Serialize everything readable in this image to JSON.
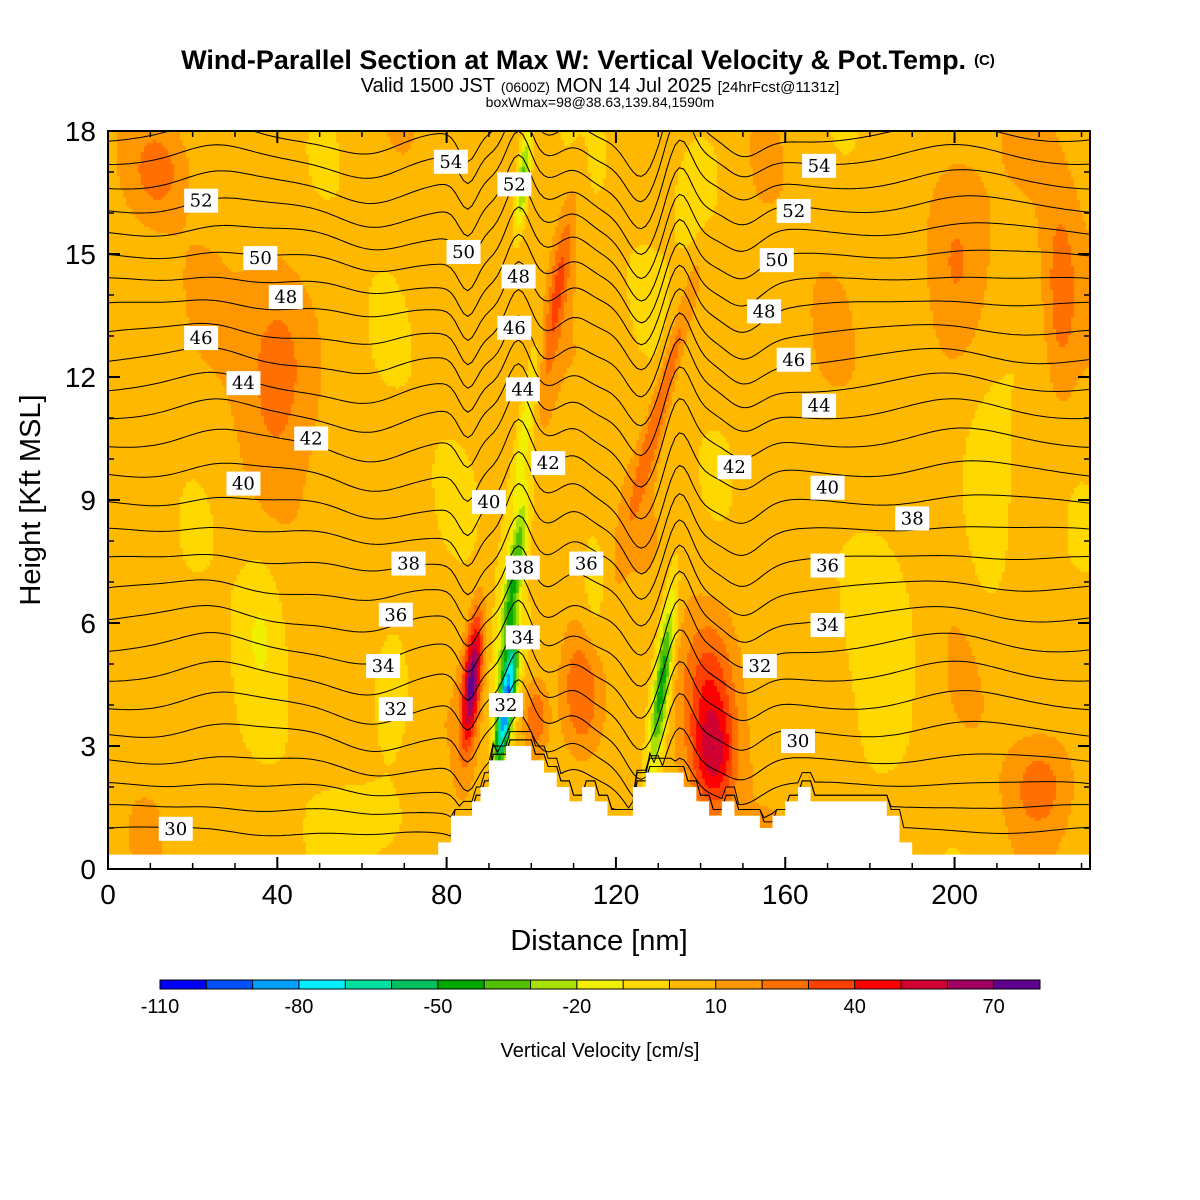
{
  "chart_data": {
    "type": "heatmap",
    "title": "Wind-Parallel Section at Max W: Vertical Velocity & Pot.Temp.",
    "title_mark": "(C)",
    "subtitle_a": "Valid 1500 JST",
    "subtitle_zulu": "(0600Z)",
    "subtitle_b": "MON 14 Jul 2025",
    "subtitle_fcst": "[24hrFcst@1131z]",
    "subtitle_box": "boxWmax=98@38.63,139.84,1590m",
    "xlabel": "Distance [nm]",
    "ylabel": "Height [Kft MSL]",
    "xlim": [
      0,
      232
    ],
    "ylim": [
      0,
      18
    ],
    "x_ticks": [
      0,
      40,
      80,
      120,
      160,
      200
    ],
    "x_tick_labels": [
      "0",
      "40",
      "80",
      "120",
      "160",
      "200"
    ],
    "y_ticks": [
      0,
      3,
      6,
      9,
      12,
      15,
      18
    ],
    "y_tick_labels": [
      "0",
      "3",
      "6",
      "9",
      "12",
      "15",
      "18"
    ],
    "colorbar": {
      "label": "Vertical Velocity [cm/s]",
      "colors": [
        "#0000ff",
        "#0050ff",
        "#00a0ff",
        "#00f0ff",
        "#00e0a0",
        "#00c060",
        "#00a800",
        "#50c000",
        "#a8e000",
        "#f0f000",
        "#ffd800",
        "#ffb800",
        "#ff9800",
        "#ff7000",
        "#ff4000",
        "#ff0000",
        "#d00030",
        "#a00060",
        "#600090"
      ],
      "tick_values": [
        -110,
        -80,
        -50,
        -20,
        10,
        40,
        70
      ],
      "tick_labels": [
        "-110",
        "-80",
        "-50",
        "-20",
        "10",
        "40",
        "70"
      ],
      "bounds": [
        -110,
        80
      ]
    },
    "field_background": "#ffd800",
    "w_features": [
      {
        "x": 86,
        "z": 4.6,
        "sx": 2.0,
        "sz": 1.6,
        "w": 70,
        "tilt": 0.8
      },
      {
        "x": 94,
        "z": 4.0,
        "sx": 1.8,
        "sz": 1.6,
        "w": -95,
        "tilt": 1.2
      },
      {
        "x": 96,
        "z": 7.2,
        "sx": 2.0,
        "sz": 2.2,
        "w": -45,
        "tilt": 1.4
      },
      {
        "x": 99,
        "z": 11.0,
        "sx": 2.0,
        "sz": 2.4,
        "w": -25,
        "tilt": 1.6
      },
      {
        "x": 98,
        "z": 16.8,
        "sx": 1.5,
        "sz": 1.3,
        "w": -40,
        "tilt": 1.0
      },
      {
        "x": 106,
        "z": 14.0,
        "sx": 2.5,
        "sz": 2.4,
        "w": 28,
        "tilt": 1.5
      },
      {
        "x": 112,
        "z": 4.3,
        "sx": 5.0,
        "sz": 1.6,
        "w": 26,
        "tilt": 0.0
      },
      {
        "x": 101,
        "z": 3.7,
        "sx": 3.0,
        "sz": 1.0,
        "w": 28,
        "tilt": 0.0
      },
      {
        "x": 131,
        "z": 4.6,
        "sx": 2.0,
        "sz": 2.2,
        "w": -52,
        "tilt": 1.0
      },
      {
        "x": 131,
        "z": 11.5,
        "sx": 2.2,
        "sz": 3.0,
        "w": 26,
        "tilt": 2.5
      },
      {
        "x": 143,
        "z": 2.7,
        "sx": 5.0,
        "sz": 1.3,
        "w": 42,
        "tilt": 0.0
      },
      {
        "x": 142,
        "z": 4.5,
        "sx": 6.0,
        "sz": 1.6,
        "w": 24,
        "tilt": 0.0
      },
      {
        "x": 67,
        "z": 4.2,
        "sx": 5.0,
        "sz": 2.0,
        "w": -12,
        "tilt": 0.0
      },
      {
        "x": 36,
        "z": 6.0,
        "sx": 5.0,
        "sz": 2.0,
        "w": -12,
        "tilt": 0.0
      },
      {
        "x": 183,
        "z": 6.5,
        "sx": 8.0,
        "sz": 2.5,
        "w": -14,
        "tilt": 0.0
      },
      {
        "x": 208,
        "z": 8.5,
        "sx": 5.0,
        "sz": 2.5,
        "w": -12,
        "tilt": 0.0
      },
      {
        "x": 63,
        "z": 1.2,
        "sx": 9.0,
        "sz": 0.9,
        "w": -12,
        "tilt": 0.0
      },
      {
        "x": 40,
        "z": 12.5,
        "sx": 8.0,
        "sz": 2.5,
        "w": 18,
        "tilt": 0.0
      },
      {
        "x": 200,
        "z": 15.0,
        "sx": 8.0,
        "sz": 2.5,
        "w": 18,
        "tilt": 0.0
      },
      {
        "x": 220,
        "z": 2.0,
        "sx": 6.0,
        "sz": 1.0,
        "w": 18,
        "tilt": 0.0
      },
      {
        "x": 225,
        "z": 14.0,
        "sx": 4.0,
        "sz": 2.5,
        "w": 18,
        "tilt": 0.0
      },
      {
        "x": 12,
        "z": 17.0,
        "sx": 6.0,
        "sz": 1.0,
        "w": 16,
        "tilt": 0.0
      },
      {
        "x": 140,
        "z": 16.5,
        "sx": 6.0,
        "sz": 1.5,
        "w": -12,
        "tilt": 0.0
      },
      {
        "x": 115,
        "z": 6.5,
        "sx": 3.5,
        "sz": 2.0,
        "w": -12,
        "tilt": 0.0
      }
    ],
    "terrain": {
      "x": [
        0,
        78,
        78,
        81,
        81,
        86,
        86,
        88,
        88,
        90,
        90,
        94,
        94,
        100,
        100,
        103,
        103,
        106,
        106,
        109,
        109,
        112,
        112,
        115,
        115,
        118,
        118,
        124,
        124,
        127,
        127,
        136,
        136,
        139,
        139,
        142,
        142,
        145,
        145,
        148,
        148,
        154,
        154,
        157,
        157,
        160,
        160,
        163,
        163,
        166,
        166,
        184,
        184,
        187,
        187,
        190,
        190,
        193,
        193,
        232
      ],
      "z": [
        0.35,
        0.35,
        0.65,
        0.65,
        1.3,
        1.3,
        1.65,
        1.65,
        2.0,
        2.0,
        2.65,
        2.65,
        3.0,
        3.0,
        2.65,
        2.65,
        2.35,
        2.35,
        2.0,
        2.0,
        1.65,
        1.65,
        2.0,
        2.0,
        1.65,
        1.65,
        1.3,
        1.3,
        2.0,
        2.0,
        2.35,
        2.35,
        2.0,
        2.0,
        1.65,
        1.65,
        1.3,
        1.3,
        1.65,
        1.65,
        1.3,
        1.3,
        1.0,
        1.0,
        1.3,
        1.3,
        1.65,
        1.65,
        2.0,
        2.0,
        1.65,
        1.65,
        1.3,
        1.3,
        0.65,
        0.65,
        0.35,
        0.35,
        0.35,
        0.35
      ]
    },
    "theta_contours": [
      {
        "value": 30,
        "base": 0.9,
        "label": "30",
        "label_x": 163,
        "label_z": 3.12
      },
      {
        "value": 31,
        "base": 1.45
      },
      {
        "value": 32,
        "base": 2.0,
        "label": "32",
        "label_x": 154,
        "label_z": 4.95
      },
      {
        "value": 33,
        "base": 2.6
      },
      {
        "value": 34,
        "base": 3.3,
        "label": "34",
        "label_x": 170,
        "label_z": 5.95
      },
      {
        "value": 35,
        "base": 4.0
      },
      {
        "value": 36,
        "base": 4.7,
        "label": "36",
        "label_x": 170,
        "label_z": 7.4
      },
      {
        "value": 37,
        "base": 5.4
      },
      {
        "value": 38,
        "base": 6.1,
        "label": "38",
        "label_x": 190,
        "label_z": 8.55
      },
      {
        "value": 39,
        "base": 6.8
      },
      {
        "value": 40,
        "base": 7.5,
        "label": "40",
        "label_x": 170,
        "label_z": 9.3
      },
      {
        "value": 41,
        "base": 8.2
      },
      {
        "value": 42,
        "base": 8.9,
        "label": "42",
        "label_x": 148,
        "label_z": 9.8
      },
      {
        "value": 43,
        "base": 9.65
      },
      {
        "value": 44,
        "base": 10.4,
        "label": "44",
        "label_x": 168,
        "label_z": 11.3
      },
      {
        "value": 45,
        "base": 11.1
      },
      {
        "value": 46,
        "base": 11.75,
        "label": "46",
        "label_x": 162,
        "label_z": 12.42
      },
      {
        "value": 47,
        "base": 12.4
      },
      {
        "value": 48,
        "base": 13.05,
        "label": "48",
        "label_x": 155,
        "label_z": 13.6
      },
      {
        "value": 49,
        "base": 13.7
      },
      {
        "value": 50,
        "base": 14.3,
        "label": "50",
        "label_x": 158,
        "label_z": 14.85
      },
      {
        "value": 51,
        "base": 14.9
      },
      {
        "value": 52,
        "base": 15.5,
        "label": "52",
        "label_x": 162,
        "label_z": 16.05
      },
      {
        "value": 53,
        "base": 16.1
      },
      {
        "value": 54,
        "base": 16.7,
        "label": "54",
        "label_x": 168,
        "label_z": 17.15
      },
      {
        "value": 55,
        "base": 17.3
      },
      {
        "value": 56,
        "base": 17.85
      }
    ],
    "extra_contour_labels": [
      {
        "text": "30",
        "x": 16,
        "z": 0.98
      },
      {
        "text": "32",
        "x": 68,
        "z": 3.9
      },
      {
        "text": "34",
        "x": 65,
        "z": 4.95
      },
      {
        "text": "36",
        "x": 68,
        "z": 6.2
      },
      {
        "text": "38",
        "x": 71,
        "z": 7.45
      },
      {
        "text": "40",
        "x": 32,
        "z": 9.4
      },
      {
        "text": "42",
        "x": 48,
        "z": 10.5
      },
      {
        "text": "44",
        "x": 32,
        "z": 11.85
      },
      {
        "text": "46",
        "x": 22,
        "z": 12.95
      },
      {
        "text": "48",
        "x": 42,
        "z": 13.95
      },
      {
        "text": "50",
        "x": 36,
        "z": 14.9
      },
      {
        "text": "52",
        "x": 22,
        "z": 16.3
      },
      {
        "text": "54",
        "x": 81,
        "z": 17.25
      },
      {
        "text": "50",
        "x": 84,
        "z": 15.05
      },
      {
        "text": "52",
        "x": 96,
        "z": 16.7
      },
      {
        "text": "48",
        "x": 97,
        "z": 14.45
      },
      {
        "text": "46",
        "x": 96,
        "z": 13.2
      },
      {
        "text": "44",
        "x": 98,
        "z": 11.7
      },
      {
        "text": "42",
        "x": 104,
        "z": 9.9
      },
      {
        "text": "40",
        "x": 90,
        "z": 8.95
      },
      {
        "text": "38",
        "x": 98,
        "z": 7.35
      },
      {
        "text": "36",
        "x": 113,
        "z": 7.45
      },
      {
        "text": "34",
        "x": 98,
        "z": 5.65
      },
      {
        "text": "32",
        "x": 94,
        "z": 4.0
      }
    ]
  }
}
